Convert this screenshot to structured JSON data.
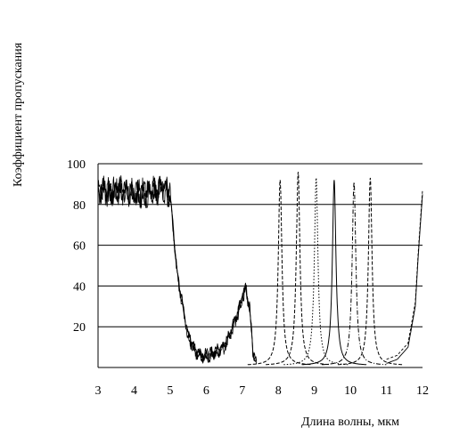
{
  "chart_data": {
    "type": "line",
    "xlabel": "Длина волны, мкм",
    "ylabel": "Коэффициент пропускания",
    "xlim": [
      3,
      12
    ],
    "ylim": [
      0,
      100
    ],
    "x_ticks": [
      "3",
      "4",
      "5",
      "6",
      "7",
      "8",
      "9",
      "10",
      "11",
      "12"
    ],
    "y_ticks": [
      "20",
      "40",
      "60",
      "80",
      "100"
    ],
    "grid": "horizontal",
    "legend": "none",
    "broadband_curve": {
      "x": [
        3.0,
        3.3,
        3.6,
        4.0,
        4.4,
        4.8,
        5.0,
        5.1,
        5.2,
        5.35,
        5.5,
        5.7,
        5.9,
        6.1,
        6.3,
        6.5,
        6.7,
        6.9,
        7.0,
        7.1,
        7.2,
        7.3,
        7.4
      ],
      "y": [
        88,
        86,
        87,
        85,
        86,
        88,
        85,
        65,
        45,
        30,
        15,
        8,
        6,
        6,
        8,
        10,
        18,
        28,
        35,
        38,
        30,
        8,
        2
      ]
    },
    "narrowband_filters": [
      {
        "center": 8.05,
        "peak": 92,
        "style": "dashed"
      },
      {
        "center": 8.55,
        "peak": 96,
        "style": "dashed"
      },
      {
        "center": 9.05,
        "peak": 93,
        "style": "dotted"
      },
      {
        "center": 9.55,
        "peak": 92,
        "style": "solid"
      },
      {
        "center": 10.1,
        "peak": 91,
        "style": "dashdot"
      },
      {
        "center": 10.55,
        "peak": 93,
        "style": "dashed"
      }
    ],
    "long_edge_curve": {
      "x": [
        11.0,
        11.3,
        11.6,
        11.8,
        11.9,
        12.0
      ],
      "y": [
        2,
        4,
        10,
        30,
        60,
        85
      ]
    }
  }
}
